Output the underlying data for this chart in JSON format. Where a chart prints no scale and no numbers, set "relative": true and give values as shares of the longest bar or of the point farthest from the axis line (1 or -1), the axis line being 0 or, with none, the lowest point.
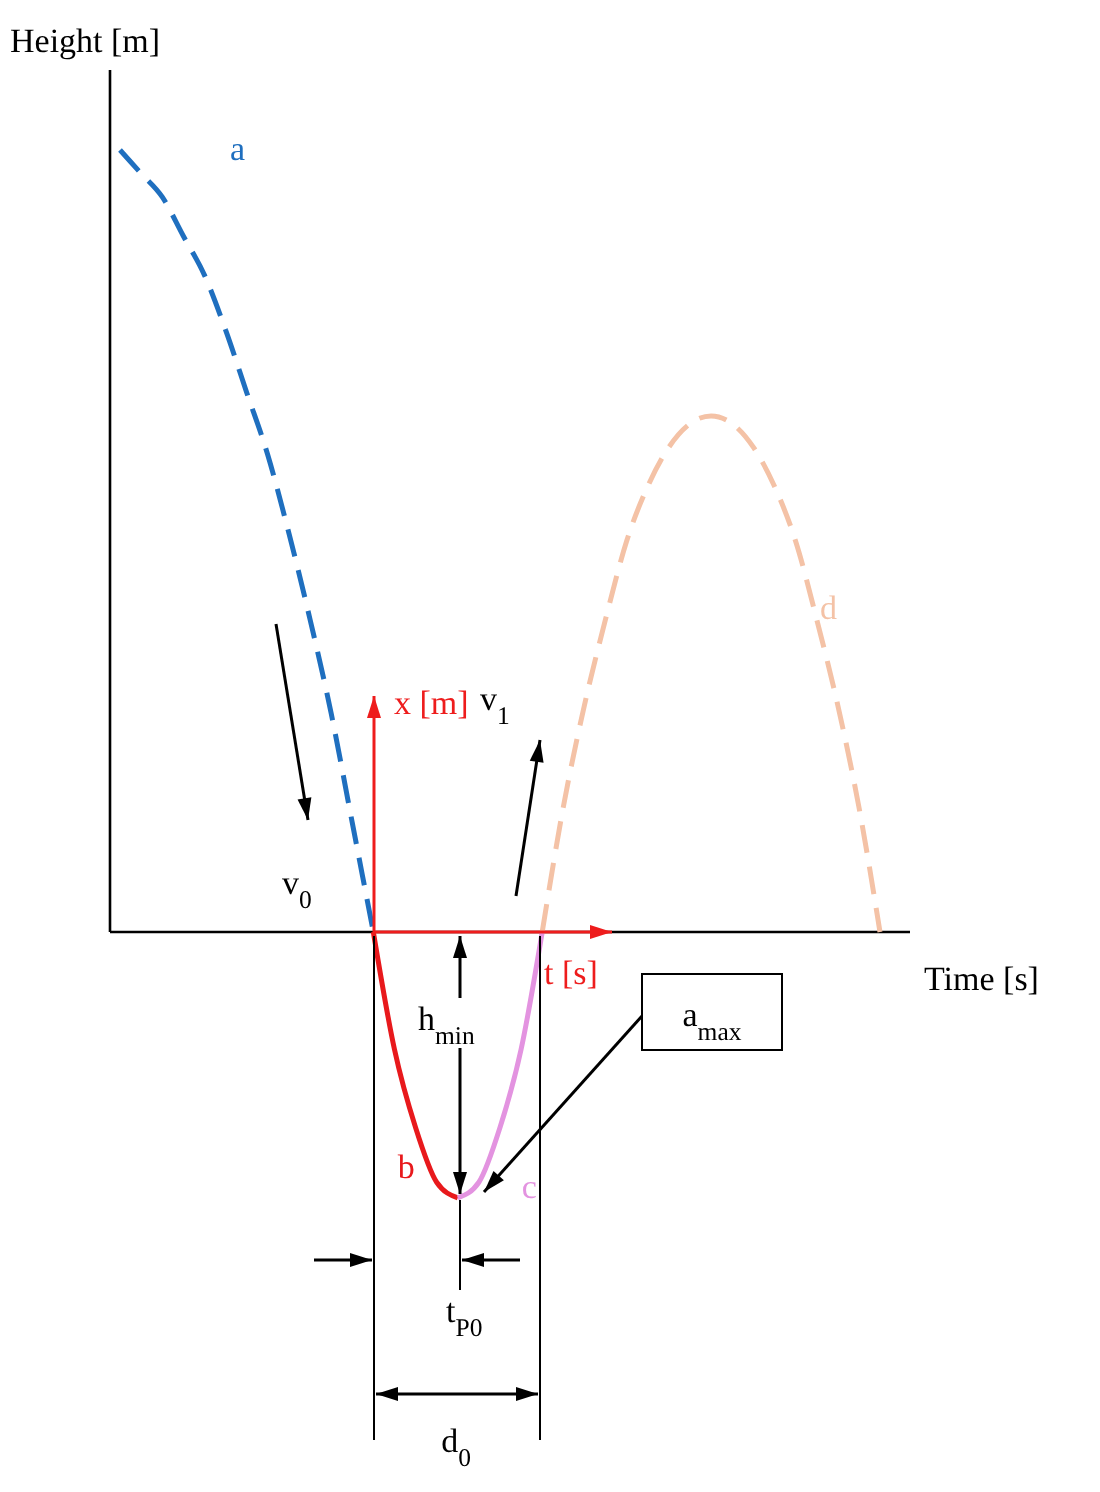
{
  "chart_data": {
    "type": "line",
    "relative": true,
    "xlabel": "Time [s]",
    "ylabel": "Height [m]",
    "categories": [
      null,
      null,
      null,
      null,
      null,
      null,
      null,
      null,
      null,
      null,
      null,
      null,
      null,
      null,
      null,
      null,
      null,
      null,
      null,
      null,
      null,
      null,
      null,
      null,
      null,
      null,
      null,
      null,
      null,
      null,
      null,
      null,
      null,
      null,
      null,
      null,
      null
    ],
    "series": [
      {
        "name": "a",
        "color": "#1f6fbf",
        "line_style": "dashed",
        "values": [
          1,
          0.97,
          0.94,
          0.89,
          0.84,
          0.77,
          0.69,
          0.61,
          0.51,
          0.4,
          0.28,
          0.14,
          0,
          null,
          null,
          null,
          null,
          null,
          null,
          null,
          null,
          null,
          null,
          null,
          null,
          null,
          null,
          null,
          null,
          null,
          null,
          null,
          null,
          null,
          null,
          null,
          null
        ]
      },
      {
        "name": "b",
        "color": "#e8191c",
        "line_style": "solid",
        "values": [
          null,
          null,
          null,
          null,
          null,
          null,
          null,
          null,
          null,
          null,
          null,
          null,
          0,
          -0.15,
          -0.25,
          -0.32,
          -0.34,
          null,
          null,
          null,
          null,
          null,
          null,
          null,
          null,
          null,
          null,
          null,
          null,
          null,
          null,
          null,
          null,
          null,
          null,
          null,
          null
        ]
      },
      {
        "name": "c",
        "color": "#e393e0",
        "line_style": "solid",
        "values": [
          null,
          null,
          null,
          null,
          null,
          null,
          null,
          null,
          null,
          null,
          null,
          null,
          null,
          null,
          null,
          null,
          -0.34,
          -0.32,
          -0.25,
          -0.15,
          0,
          null,
          null,
          null,
          null,
          null,
          null,
          null,
          null,
          null,
          null,
          null,
          null,
          null,
          null,
          null,
          null
        ]
      },
      {
        "name": "d",
        "color": "#f4c2a6",
        "line_style": "dashed",
        "values": [
          null,
          null,
          null,
          null,
          null,
          null,
          null,
          null,
          null,
          null,
          null,
          null,
          null,
          null,
          null,
          null,
          null,
          null,
          null,
          null,
          0,
          0.16,
          0.29,
          0.4,
          0.5,
          0.57,
          0.62,
          0.65,
          0.66,
          0.65,
          0.62,
          0.57,
          0.5,
          0.4,
          0.29,
          0.16,
          0
        ]
      }
    ],
    "annotations": [
      "x [m]",
      "t [s]",
      "v$_{0}$",
      "v$_{1}$",
      "h$_{min}$",
      "a$_{max}$",
      "t$_{P0}$",
      "d$_{0}$"
    ]
  }
}
